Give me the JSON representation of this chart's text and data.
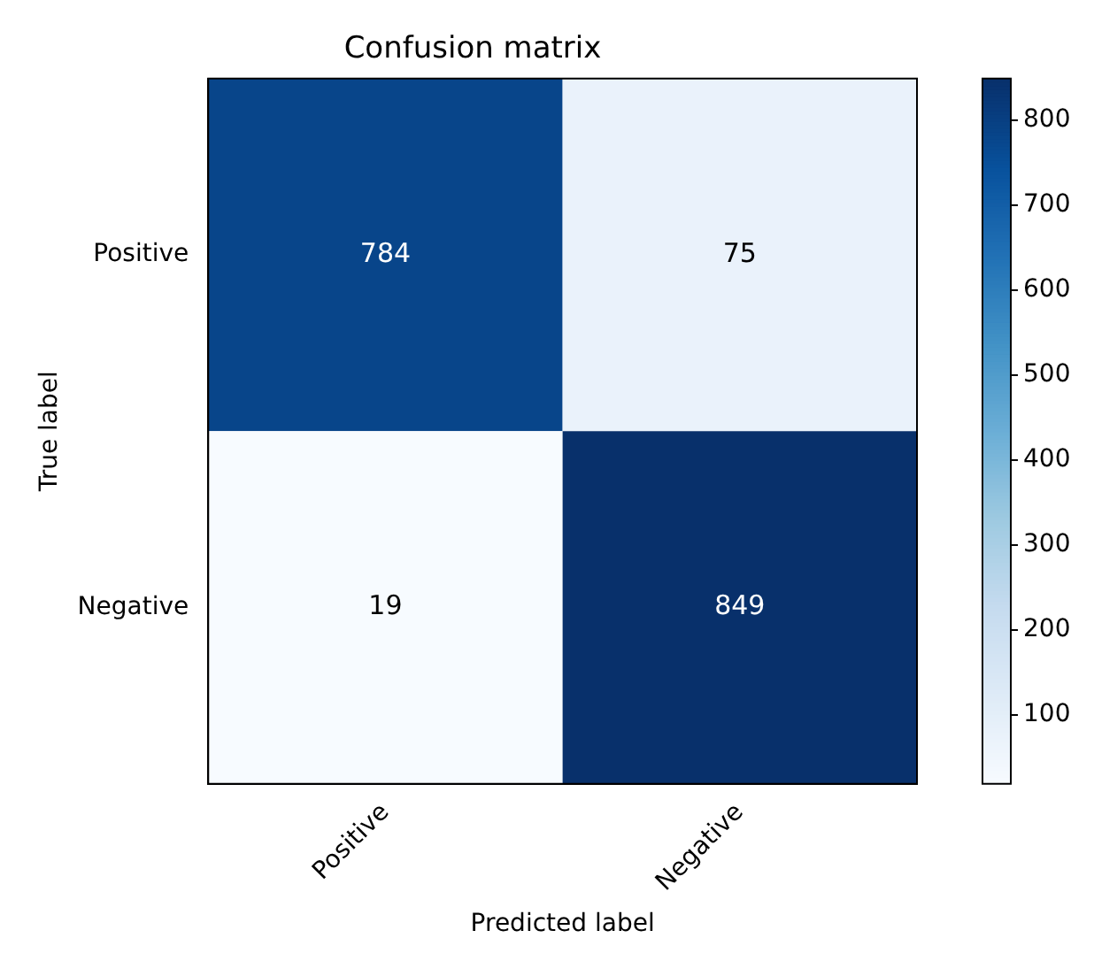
{
  "chart_data": {
    "type": "heatmap",
    "title": "Confusion matrix",
    "xlabel": "Predicted label",
    "ylabel": "True label",
    "categories": [
      "Positive",
      "Negative"
    ],
    "y_categories": [
      "Positive",
      "Negative"
    ],
    "cells": [
      [
        784,
        75
      ],
      [
        19,
        849
      ]
    ],
    "clim": [
      19,
      849
    ],
    "cticks": [
      100,
      200,
      300,
      400,
      500,
      600,
      700,
      800
    ],
    "data_labels": true
  }
}
